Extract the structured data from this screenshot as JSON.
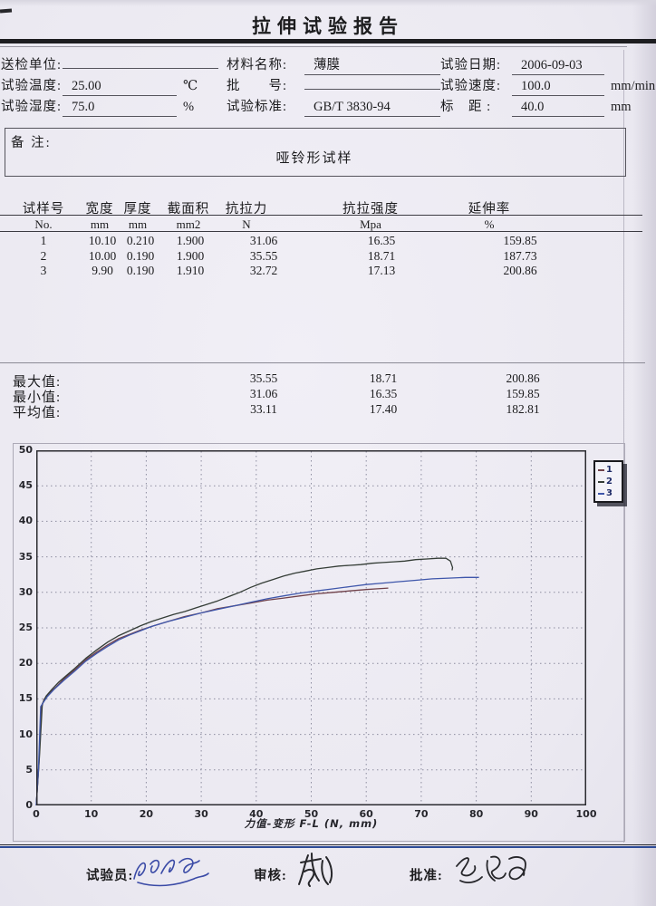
{
  "title": "拉伸试验报告",
  "header": {
    "fields": [
      {
        "label": "送检单位:",
        "value": "",
        "unit": ""
      },
      {
        "label": "材料名称:",
        "value": "薄膜",
        "unit": ""
      },
      {
        "label": "试验日期:",
        "value": "2006-09-03",
        "unit": ""
      },
      {
        "label": "试验温度:",
        "value": "25.00",
        "unit": "℃"
      },
      {
        "label": "批　　号:",
        "value": "",
        "unit": ""
      },
      {
        "label": "试验速度:",
        "value": "100.0",
        "unit": "mm/min"
      },
      {
        "label": "试验湿度:",
        "value": "75.0",
        "unit": "%"
      },
      {
        "label": "试验标准:",
        "value": "GB/T 3830-94",
        "unit": ""
      },
      {
        "label": "标　距 :",
        "value": "40.0",
        "unit": "mm"
      }
    ]
  },
  "remark": {
    "label": "备 注:",
    "content": "哑铃形试样"
  },
  "table": {
    "columns": [
      {
        "name": "试样号",
        "unit": "No."
      },
      {
        "name": "宽度",
        "unit": "mm"
      },
      {
        "name": "厚度",
        "unit": "mm"
      },
      {
        "name": "截面积",
        "unit": "mm2"
      },
      {
        "name": "抗拉力",
        "unit": "N"
      },
      {
        "name": "抗拉强度",
        "unit": "Mpa"
      },
      {
        "name": "延伸率",
        "unit": "%"
      }
    ],
    "rows": [
      [
        "1",
        "10.10",
        "0.210",
        "1.900",
        "31.06",
        "16.35",
        "159.85"
      ],
      [
        "2",
        "10.00",
        "0.190",
        "1.900",
        "35.55",
        "18.71",
        "187.73"
      ],
      [
        "3",
        "9.90",
        "0.190",
        "1.910",
        "32.72",
        "17.13",
        "200.86"
      ]
    ]
  },
  "stats": [
    {
      "label": "最大值:",
      "values": [
        "35.55",
        "18.71",
        "200.86"
      ]
    },
    {
      "label": "最小值:",
      "values": [
        "31.06",
        "16.35",
        "159.85"
      ]
    },
    {
      "label": "平均值:",
      "values": [
        "33.11",
        "17.40",
        "182.81"
      ]
    }
  ],
  "chart_data": {
    "type": "line",
    "title": "",
    "xlabel": "力值-变形 F-L   (N, mm)",
    "ylabel": "",
    "xlim": [
      0,
      100
    ],
    "ylim": [
      0,
      50
    ],
    "xticks": [
      0,
      10,
      20,
      30,
      40,
      50,
      60,
      70,
      80,
      90,
      100
    ],
    "yticks": [
      0,
      5,
      10,
      15,
      20,
      25,
      30,
      35,
      40,
      45,
      50
    ],
    "grid": "dashed",
    "grid_color": "#8d8da0",
    "legend": {
      "position": "top-right",
      "entries": [
        {
          "label": "1",
          "color": "#6f4049"
        },
        {
          "label": "2",
          "color": "#343d36"
        },
        {
          "label": "3",
          "color": "#3f57ab"
        }
      ]
    },
    "series": [
      {
        "name": "1",
        "color": "#6f4049",
        "points": [
          [
            0,
            0
          ],
          [
            0.5,
            6
          ],
          [
            0.9,
            13.6
          ],
          [
            1.4,
            14.9
          ],
          [
            2.2,
            15.7
          ],
          [
            3.5,
            16.6
          ],
          [
            5,
            17.8
          ],
          [
            7,
            19.1
          ],
          [
            9,
            20.5
          ],
          [
            11,
            21.6
          ],
          [
            13,
            22.6
          ],
          [
            15,
            23.5
          ],
          [
            17,
            24.1
          ],
          [
            19,
            24.7
          ],
          [
            21,
            25.2
          ],
          [
            24,
            25.9
          ],
          [
            27,
            26.6
          ],
          [
            30,
            27.1
          ],
          [
            33,
            27.7
          ],
          [
            36,
            28.1
          ],
          [
            39,
            28.5
          ],
          [
            42,
            28.9
          ],
          [
            45,
            29.2
          ],
          [
            48,
            29.5
          ],
          [
            51,
            29.8
          ],
          [
            54,
            30.0
          ],
          [
            57,
            30.2
          ],
          [
            60,
            30.4
          ],
          [
            62,
            30.5
          ],
          [
            64,
            30.6
          ]
        ]
      },
      {
        "name": "2",
        "color": "#343d36",
        "points": [
          [
            0,
            0
          ],
          [
            0.6,
            7
          ],
          [
            1.1,
            14.3
          ],
          [
            1.8,
            15.4
          ],
          [
            2.8,
            16.3
          ],
          [
            4,
            17.3
          ],
          [
            5.5,
            18.3
          ],
          [
            7,
            19.3
          ],
          [
            9,
            20.7
          ],
          [
            11,
            21.9
          ],
          [
            13,
            23.0
          ],
          [
            15,
            23.9
          ],
          [
            17,
            24.6
          ],
          [
            19,
            25.3
          ],
          [
            21,
            25.9
          ],
          [
            23,
            26.4
          ],
          [
            25,
            26.9
          ],
          [
            27,
            27.3
          ],
          [
            29,
            27.8
          ],
          [
            31,
            28.3
          ],
          [
            33,
            28.8
          ],
          [
            35,
            29.4
          ],
          [
            37,
            30.0
          ],
          [
            39,
            30.7
          ],
          [
            41,
            31.3
          ],
          [
            43,
            31.8
          ],
          [
            45,
            32.3
          ],
          [
            47,
            32.7
          ],
          [
            49,
            33.0
          ],
          [
            51,
            33.3
          ],
          [
            53,
            33.5
          ],
          [
            55,
            33.7
          ],
          [
            57,
            33.8
          ],
          [
            59,
            33.9
          ],
          [
            61,
            34.1
          ],
          [
            63,
            34.2
          ],
          [
            65,
            34.3
          ],
          [
            67,
            34.4
          ],
          [
            69,
            34.6
          ],
          [
            71,
            34.7
          ],
          [
            73,
            34.8
          ],
          [
            74.5,
            34.8
          ],
          [
            75.3,
            34.4
          ],
          [
            75.7,
            33.5
          ],
          [
            75.6,
            33.1
          ]
        ]
      },
      {
        "name": "3",
        "color": "#3f57ab",
        "points": [
          [
            0,
            0
          ],
          [
            0.4,
            5
          ],
          [
            0.8,
            13.9
          ],
          [
            1.2,
            14.4
          ],
          [
            2,
            15.3
          ],
          [
            3.2,
            16.3
          ],
          [
            5,
            17.6
          ],
          [
            7,
            18.9
          ],
          [
            9,
            20.3
          ],
          [
            11,
            21.4
          ],
          [
            13,
            22.4
          ],
          [
            15,
            23.3
          ],
          [
            17,
            24.0
          ],
          [
            19,
            24.6
          ],
          [
            21,
            25.2
          ],
          [
            24,
            25.9
          ],
          [
            27,
            26.5
          ],
          [
            30,
            27.1
          ],
          [
            33,
            27.6
          ],
          [
            36,
            28.1
          ],
          [
            39,
            28.6
          ],
          [
            42,
            29.1
          ],
          [
            45,
            29.5
          ],
          [
            48,
            29.9
          ],
          [
            51,
            30.2
          ],
          [
            54,
            30.5
          ],
          [
            57,
            30.8
          ],
          [
            60,
            31.1
          ],
          [
            63,
            31.3
          ],
          [
            66,
            31.5
          ],
          [
            69,
            31.7
          ],
          [
            72,
            31.9
          ],
          [
            75,
            32.0
          ],
          [
            78,
            32.1
          ],
          [
            80.5,
            32.1
          ]
        ]
      }
    ]
  },
  "footer": {
    "items": [
      {
        "label": "试验员:",
        "signature_color": "#3a4aa6"
      },
      {
        "label": "审核:",
        "signature_color": "#26262a"
      },
      {
        "label": "批准:",
        "signature_color": "#26262a"
      }
    ]
  }
}
